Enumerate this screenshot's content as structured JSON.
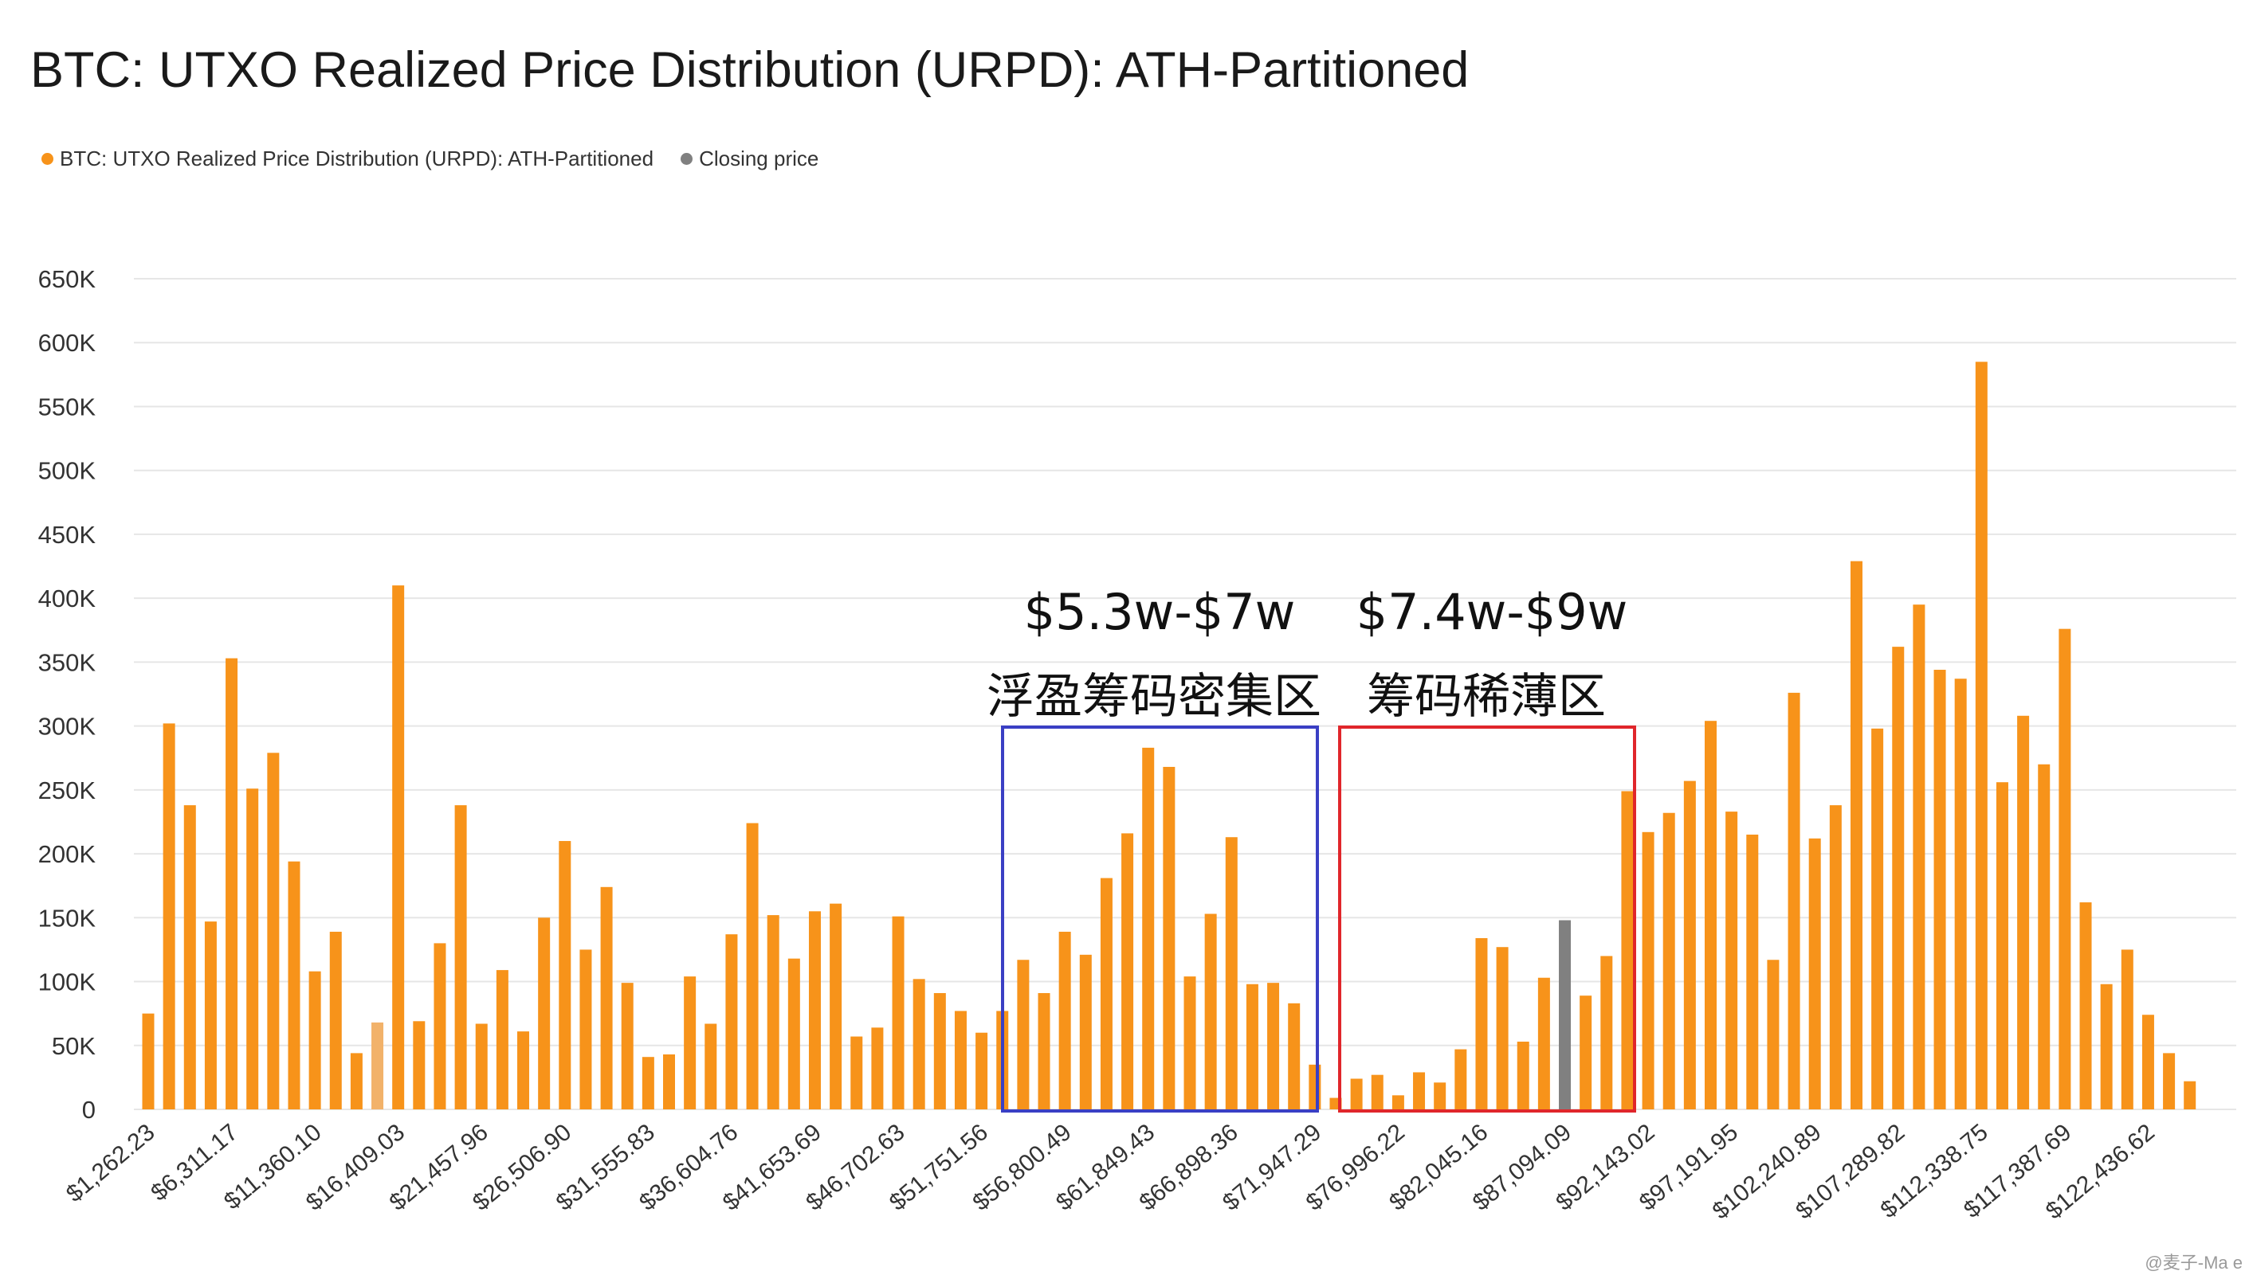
{
  "title": "BTC: UTXO Realized Price Distribution (URPD): ATH-Partitioned",
  "legend": [
    {
      "label": "BTC: UTXO Realized Price Distribution (URPD): ATH-Partitioned",
      "color": "#f7931a"
    },
    {
      "label": "Closing price",
      "color": "#808080"
    }
  ],
  "annotations": {
    "left_range": "$5.3w-$7w",
    "left_label": "浮盈筹码密集区",
    "left_box_color": "#3a3fc4",
    "right_range": "$7.4w-$9w",
    "right_label": "筹码稀薄区",
    "right_box_color": "#e0262b"
  },
  "watermark": "@麦子-Ma e",
  "chart_data": {
    "type": "bar",
    "y_ticks": [
      "0",
      "50K",
      "100K",
      "150K",
      "200K",
      "250K",
      "300K",
      "350K",
      "400K",
      "450K",
      "500K",
      "550K",
      "600K",
      "650K"
    ],
    "ylim": [
      0,
      650000
    ],
    "x_tick_labels": [
      "$1,262.23",
      "$6,311.17",
      "$11,360.10",
      "$16,409.03",
      "$21,457.96",
      "$26,506.90",
      "$31,555.83",
      "$36,604.76",
      "$41,653.69",
      "$46,702.63",
      "$51,751.56",
      "$56,800.49",
      "$61,849.43",
      "$66,898.36",
      "$71,947.29",
      "$76,996.22",
      "$82,045.16",
      "$87,094.09",
      "$92,143.02",
      "$97,191.95",
      "$102,240.89",
      "$107,289.82",
      "$112,338.75",
      "$117,387.69",
      "$122,436.62"
    ],
    "grid": true,
    "series": [
      {
        "name": "BTC: UTXO Realized Price Distribution (URPD): ATH-Partitioned",
        "values": [
          75000,
          302000,
          238000,
          147000,
          353000,
          251000,
          279000,
          194000,
          108000,
          139000,
          44000,
          68000,
          410000,
          69000,
          130000,
          238000,
          67000,
          109000,
          61000,
          150000,
          210000,
          125000,
          174000,
          99000,
          41000,
          43000,
          104000,
          67000,
          137000,
          224000,
          152000,
          118000,
          155000,
          161000,
          57000,
          64000,
          151000,
          102000,
          91000,
          77000,
          60000,
          77000,
          117000,
          91000,
          139000,
          121000,
          181000,
          216000,
          283000,
          268000,
          104000,
          153000,
          213000,
          98000,
          99000,
          83000,
          35000,
          9000,
          24000,
          27000,
          11000,
          29000,
          21000,
          47000,
          134000,
          127000,
          53000,
          103000,
          148000,
          89000,
          120000,
          249000,
          217000,
          232000,
          257000,
          304000,
          233000,
          215000,
          117000,
          326000,
          212000,
          238000,
          429000,
          298000,
          362000,
          395000,
          344000,
          337000,
          585000,
          256000,
          308000,
          270000,
          376000,
          162000,
          98000,
          125000,
          74000,
          44000,
          22000
        ]
      },
      {
        "name": "Closing price",
        "index": 68,
        "color": "#808080"
      }
    ],
    "highlight_index": 11,
    "highlight_color": "#f2b26a"
  }
}
